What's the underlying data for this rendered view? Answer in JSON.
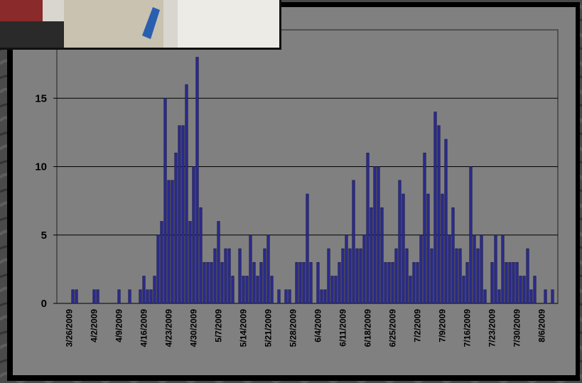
{
  "chart_data": {
    "type": "bar",
    "categories": [
      null,
      null,
      null,
      "3/26/2009",
      null,
      null,
      null,
      null,
      null,
      null,
      "4/2/2009",
      null,
      null,
      null,
      null,
      null,
      null,
      "4/9/2009",
      null,
      null,
      null,
      null,
      null,
      null,
      "4/16/2009",
      null,
      null,
      null,
      null,
      null,
      null,
      "4/23/2009",
      null,
      null,
      null,
      null,
      null,
      null,
      "4/30/2009",
      null,
      null,
      null,
      null,
      null,
      null,
      "5/7/2009",
      null,
      null,
      null,
      null,
      null,
      null,
      "5/14/2009",
      null,
      null,
      null,
      null,
      null,
      null,
      "5/21/2009",
      null,
      null,
      null,
      null,
      null,
      null,
      "5/28/2009",
      null,
      null,
      null,
      null,
      null,
      null,
      "6/4/2009",
      null,
      null,
      null,
      null,
      null,
      null,
      "6/11/2009",
      null,
      null,
      null,
      null,
      null,
      null,
      "6/18/2009",
      null,
      null,
      null,
      null,
      null,
      null,
      "6/25/2009",
      null,
      null,
      null,
      null,
      null,
      null,
      "7/2/2009",
      null,
      null,
      null,
      null,
      null,
      null,
      "7/9/2009",
      null,
      null,
      null,
      null,
      null,
      null,
      "7/16/2009",
      null,
      null,
      null,
      null,
      null,
      null,
      "7/23/2009",
      null,
      null,
      null,
      null,
      null,
      null,
      "7/30/2009",
      null,
      null,
      null,
      null,
      null,
      null,
      "8/6/2009",
      null,
      null,
      null,
      null
    ],
    "values": [
      0,
      0,
      0,
      0,
      1,
      1,
      0,
      0,
      0,
      0,
      1,
      1,
      0,
      0,
      0,
      0,
      0,
      1,
      0,
      0,
      1,
      0,
      0,
      1,
      2,
      1,
      1,
      2,
      5,
      6,
      15,
      9,
      9,
      11,
      13,
      13,
      16,
      6,
      10,
      18,
      7,
      3,
      3,
      3,
      4,
      6,
      3,
      4,
      4,
      2,
      0,
      4,
      2,
      2,
      5,
      3,
      2,
      3,
      4,
      5,
      2,
      0,
      1,
      0,
      1,
      1,
      0,
      3,
      3,
      3,
      8,
      3,
      0,
      3,
      1,
      1,
      4,
      2,
      2,
      3,
      4,
      5,
      4,
      9,
      4,
      4,
      5,
      11,
      7,
      10,
      10,
      7,
      3,
      3,
      3,
      4,
      9,
      8,
      4,
      2,
      3,
      3,
      5,
      11,
      8,
      4,
      14,
      13,
      8,
      12,
      5,
      7,
      4,
      4,
      2,
      3,
      10,
      5,
      4,
      5,
      1,
      0,
      3,
      5,
      1,
      5,
      3,
      3,
      3,
      3,
      2,
      2,
      4,
      1,
      2,
      0,
      0,
      1,
      0,
      1,
      0
    ],
    "color": "#2b2b8c",
    "ylim": [
      0,
      20
    ],
    "yticks": [
      0,
      5,
      10,
      15
    ],
    "grid": true
  }
}
